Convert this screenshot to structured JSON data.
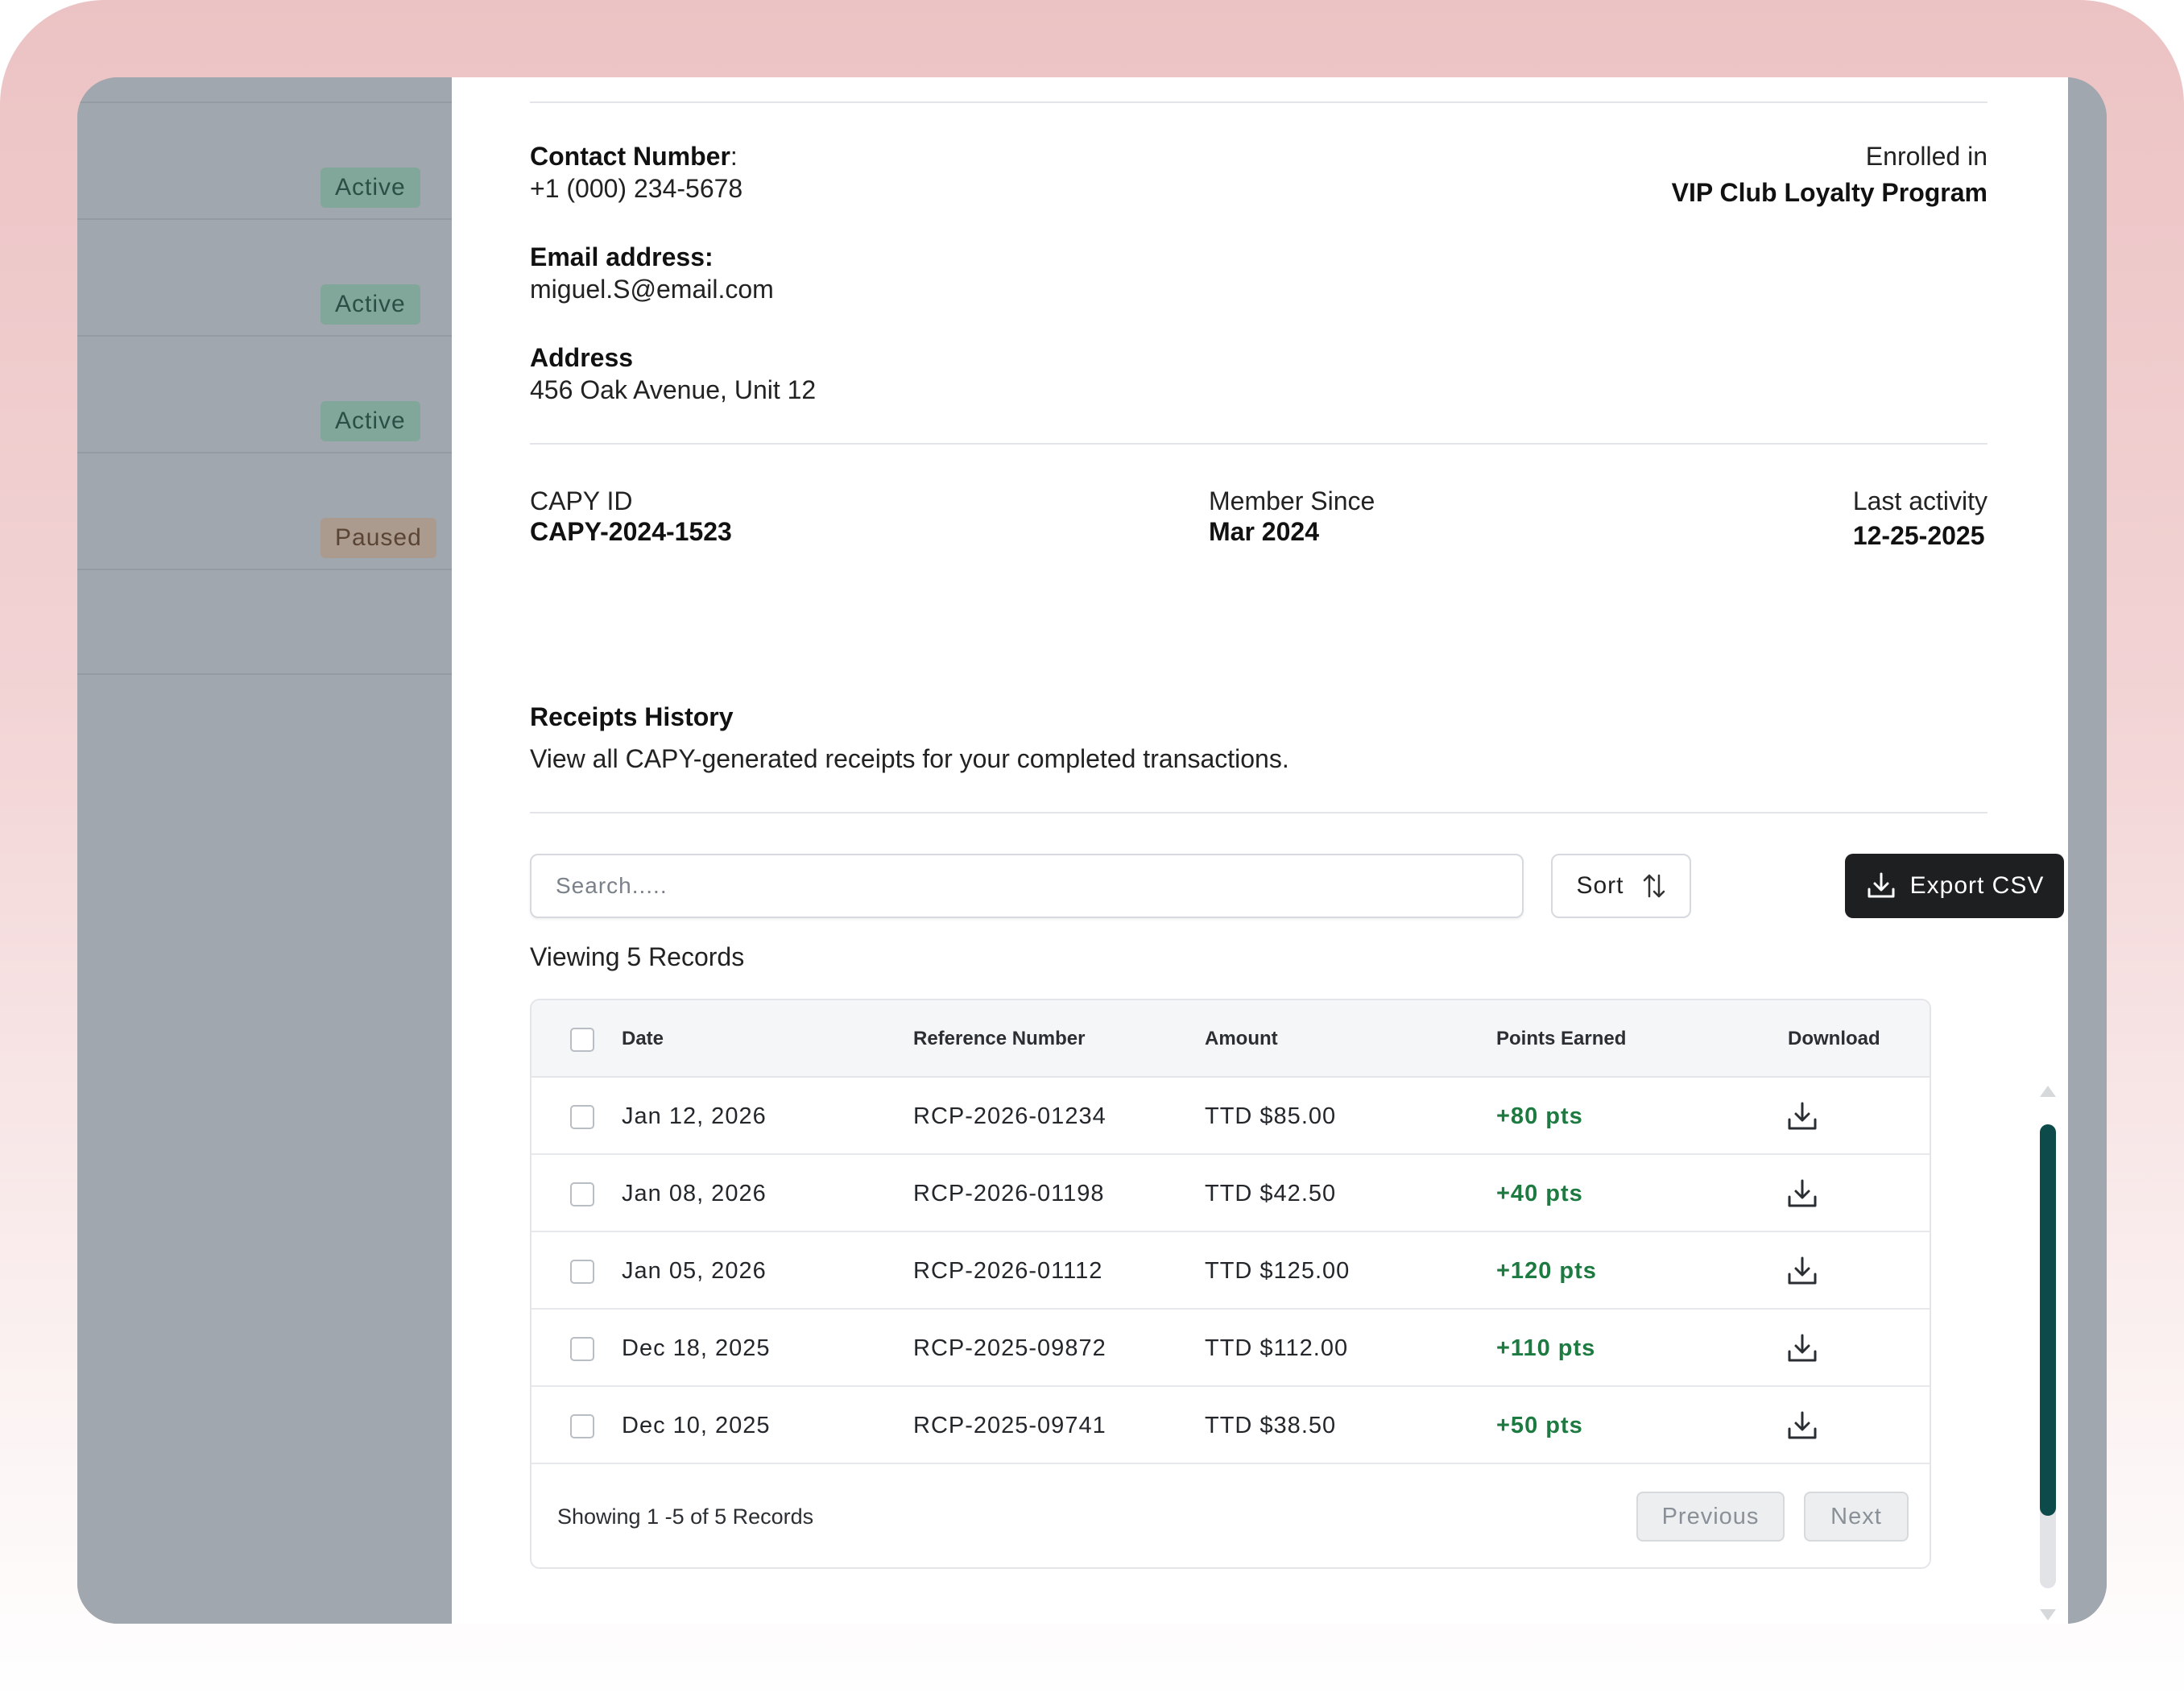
{
  "sidebar": {
    "badges": [
      {
        "label": "Active",
        "status": "active"
      },
      {
        "label": "Active",
        "status": "active"
      },
      {
        "label": "Active",
        "status": "active"
      },
      {
        "label": "Paused",
        "status": "paused"
      }
    ]
  },
  "contact": {
    "phone_label": "Contact Number",
    "phone_colon": ":",
    "phone_value": "+1 (000) 234-5678",
    "email_label": "Email address:",
    "email_value": "miguel.S@email.com",
    "address_label": "Address",
    "address_value": "456 Oak Avenue, Unit 12",
    "enrolled_label": "Enrolled in",
    "enrolled_value": "VIP Club Loyalty Program"
  },
  "meta": {
    "id_label": "CAPY ID",
    "id_value": "CAPY-2024-1523",
    "since_label": "Member Since",
    "since_value": "Mar 2024",
    "activity_label": "Last activity",
    "activity_value": "12-25-2025"
  },
  "receipts": {
    "title": "Receipts History",
    "subtitle": "View all CAPY-generated receipts for your completed transactions.",
    "search_placeholder": "Search.....",
    "sort_label": "Sort",
    "export_label": "Export CSV",
    "viewing_text": "Viewing 5 Records",
    "columns": [
      "Date",
      "Reference Number",
      "Amount",
      "Points Earned",
      "Download"
    ],
    "rows": [
      {
        "date": "Jan 12, 2026",
        "ref": "RCP-2026-01234",
        "amount": "TTD $85.00",
        "points": "+80 pts"
      },
      {
        "date": "Jan 08, 2026",
        "ref": "RCP-2026-01198",
        "amount": "TTD $42.50",
        "points": "+40 pts"
      },
      {
        "date": "Jan 05, 2026",
        "ref": "RCP-2026-01112",
        "amount": "TTD $125.00",
        "points": "+120 pts"
      },
      {
        "date": "Dec 18, 2025",
        "ref": "RCP-2025-09872",
        "amount": "TTD $112.00",
        "points": "+110 pts"
      },
      {
        "date": "Dec 10, 2025",
        "ref": "RCP-2025-09741",
        "amount": "TTD $38.50",
        "points": "+50 pts"
      }
    ],
    "footer_text": "Showing 1 -5  of  5 Records",
    "prev_label": "Previous",
    "next_label": "Next"
  },
  "colors": {
    "accent_dark": "#1d1f21",
    "points_green": "#1d7a40",
    "scroll_thumb": "#0d4a4a",
    "active_badge": "#80a79a",
    "paused_badge": "#ab9a8e"
  },
  "icons": {
    "sort": "sort-arrows-icon",
    "export": "download-icon",
    "row_download": "download-icon"
  }
}
